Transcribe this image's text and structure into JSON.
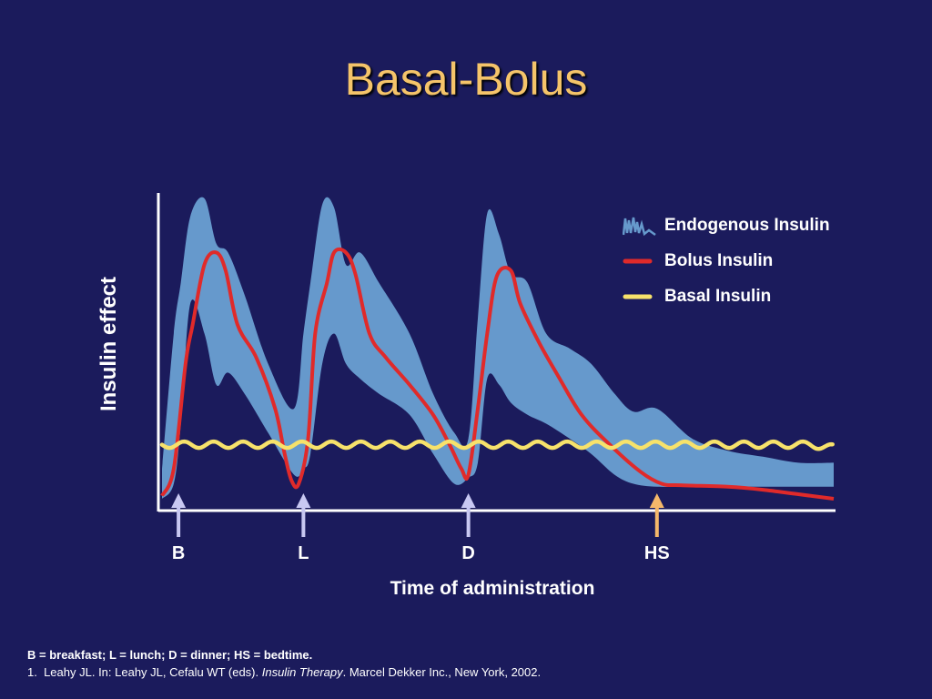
{
  "title": "Basal-Bolus",
  "colors": {
    "background": "#1b1b5c",
    "title": "#f5c46a",
    "endogenous": "#6699cc",
    "bolus": "#e02a2a",
    "basal": "#f7e26b",
    "meal_arrow": "#c8c8f2",
    "bedtime_arrow": "#f5b86a"
  },
  "chart_data": {
    "type": "line",
    "xlabel": "Time of administration",
    "ylabel": "Insulin effect",
    "axis_ticks": false,
    "grid": false,
    "legend_position": "top-right",
    "markers": [
      {
        "label": "B",
        "x": 0.7,
        "color": "meal_arrow"
      },
      {
        "label": "L",
        "x": 6.0,
        "color": "meal_arrow"
      },
      {
        "label": "D",
        "x": 13.0,
        "color": "meal_arrow"
      },
      {
        "label": "HS",
        "x": 21.0,
        "color": "bedtime_arrow"
      }
    ],
    "series": [
      {
        "name": "Endogenous Insulin",
        "kind": "band",
        "icon": "spiky-band-icon",
        "x": [
          0,
          0.5,
          0.8,
          1.2,
          1.8,
          2.3,
          2.8,
          3.5,
          4.5,
          5.6,
          6.0,
          6.3,
          6.8,
          7.3,
          7.8,
          8.4,
          9.2,
          10.5,
          11.5,
          12.4,
          13.0,
          13.4,
          13.8,
          14.3,
          14.8,
          15.5,
          16.3,
          17.3,
          18.2,
          19.2,
          20.0,
          21.0,
          22.5,
          24.0,
          25.5,
          27.0,
          28.5
        ],
        "upper": [
          0.1,
          0.55,
          0.72,
          0.94,
          1.0,
          0.85,
          0.82,
          0.68,
          0.45,
          0.3,
          0.55,
          0.72,
          0.98,
          0.97,
          0.78,
          0.82,
          0.72,
          0.55,
          0.35,
          0.22,
          0.2,
          0.6,
          0.95,
          0.88,
          0.75,
          0.72,
          0.55,
          0.5,
          0.45,
          0.35,
          0.29,
          0.3,
          0.2,
          0.16,
          0.14,
          0.12,
          0.12
        ],
        "lower": [
          0.0,
          0.05,
          0.25,
          0.65,
          0.55,
          0.38,
          0.42,
          0.35,
          0.22,
          0.08,
          0.1,
          0.15,
          0.45,
          0.55,
          0.45,
          0.4,
          0.35,
          0.28,
          0.15,
          0.05,
          0.07,
          0.12,
          0.4,
          0.38,
          0.32,
          0.28,
          0.25,
          0.2,
          0.15,
          0.08,
          0.05,
          0.04,
          0.04,
          0.04,
          0.04,
          0.04,
          0.04
        ]
      },
      {
        "name": "Bolus Insulin",
        "kind": "line",
        "x": [
          0,
          0.5,
          1.0,
          1.3,
          1.8,
          2.3,
          2.7,
          3.2,
          4.0,
          4.8,
          5.2,
          5.5,
          5.8,
          6.2,
          6.5,
          7.0,
          7.3,
          7.8,
          8.2,
          8.8,
          9.5,
          10.5,
          11.5,
          12.2,
          12.7,
          13.0,
          13.4,
          13.8,
          14.2,
          14.8,
          15.2,
          16.0,
          16.8,
          17.8,
          19.0,
          20.3,
          21.2,
          22.0,
          24.0,
          25.5,
          27.0,
          28.5
        ],
        "y": [
          0.01,
          0.1,
          0.45,
          0.58,
          0.78,
          0.82,
          0.76,
          0.58,
          0.47,
          0.3,
          0.15,
          0.06,
          0.05,
          0.2,
          0.55,
          0.72,
          0.82,
          0.82,
          0.75,
          0.55,
          0.47,
          0.38,
          0.28,
          0.18,
          0.1,
          0.08,
          0.3,
          0.55,
          0.74,
          0.76,
          0.65,
          0.52,
          0.41,
          0.28,
          0.18,
          0.09,
          0.05,
          0.045,
          0.04,
          0.03,
          0.015,
          0.0
        ]
      },
      {
        "name": "Basal Insulin",
        "kind": "line",
        "x": [
          0,
          27.5,
          28.5
        ],
        "y": [
          0.18,
          0.18,
          0.17
        ],
        "wavy": true
      }
    ]
  },
  "footnote": {
    "abbrev": "B = breakfast; L = lunch; D = dinner; HS = bedtime.",
    "ref_number": "1.",
    "ref_before": "Leahy JL. In: Leahy JL, Cefalu WT (eds). ",
    "ref_italic": "Insulin Therapy",
    "ref_after": ". Marcel Dekker Inc., New York, 2002."
  }
}
